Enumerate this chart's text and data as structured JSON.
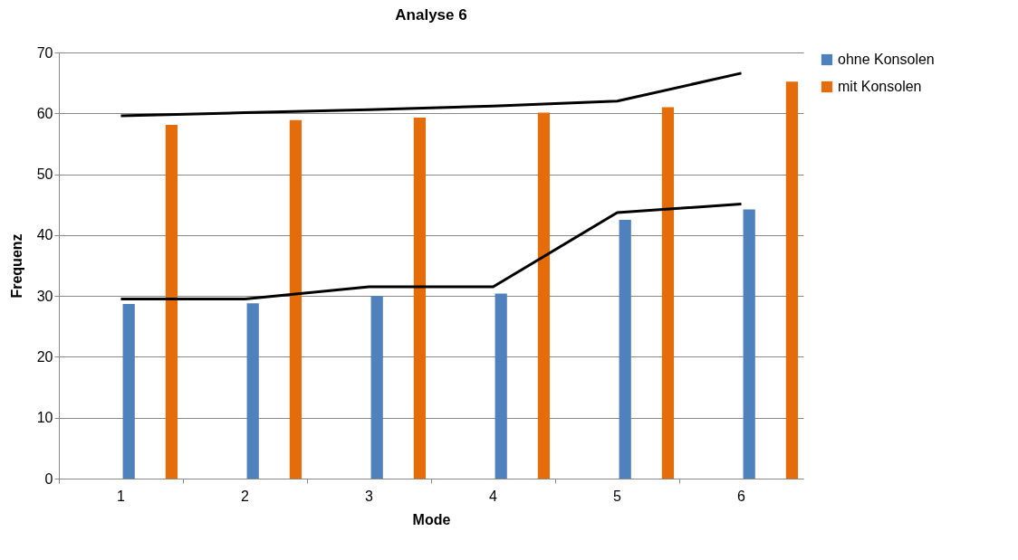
{
  "chart_data": {
    "type": "bar",
    "title": "Analyse 6",
    "xlabel": "Mode",
    "ylabel": "Frequenz",
    "categories": [
      "1",
      "2",
      "3",
      "4",
      "5",
      "6"
    ],
    "series": [
      {
        "name": "ohne Konsolen",
        "color": "#4f81bd",
        "values": [
          28.7,
          28.8,
          30.0,
          30.4,
          42.5,
          44.2
        ]
      },
      {
        "name": "mit Konsolen",
        "color": "#e46c0a",
        "values": [
          58.1,
          58.9,
          59.3,
          60.1,
          61.0,
          65.2
        ]
      },
      {
        "type": "line",
        "color": "#000000",
        "values": [
          59.6,
          60.1,
          60.6,
          61.2,
          62.0,
          66.6
        ]
      },
      {
        "type": "line",
        "color": "#000000",
        "values": [
          29.5,
          29.5,
          31.5,
          31.5,
          43.7,
          45.1
        ]
      }
    ],
    "ylim": [
      0,
      70
    ],
    "yticks": [
      0,
      10,
      20,
      30,
      40,
      50,
      60,
      70
    ],
    "grid": "y",
    "legend": "right"
  }
}
